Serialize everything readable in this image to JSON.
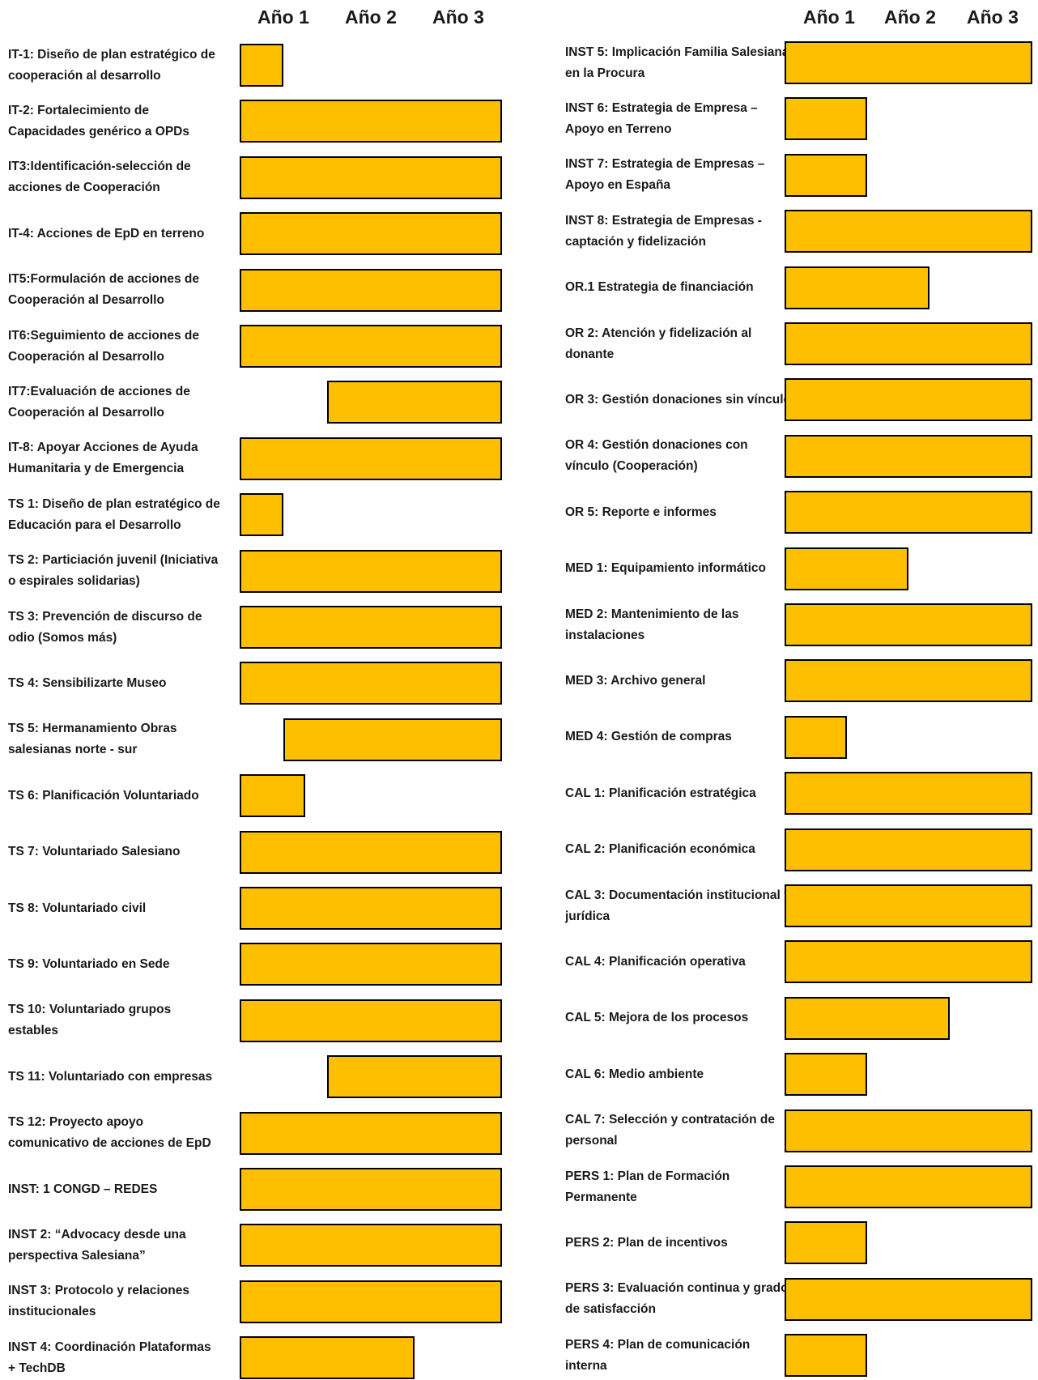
{
  "chart_data": {
    "type": "gantt",
    "year_headers": [
      "Año 1",
      "Año 2",
      "Año 3"
    ],
    "colors": {
      "bar": "#fdbf00",
      "border": "#000000",
      "text": "#1a1a1a"
    },
    "columns": [
      {
        "tasks": [
          {
            "label": "IT-1: Diseño de  plan estratégico de cooperación al desarrollo",
            "start": 0,
            "end": 0.5
          },
          {
            "label": "IT-2: Fortalecimiento de Capacidades genérico a OPDs",
            "start": 0,
            "end": 3
          },
          {
            "label": "IT3:Identificación-selección de acciones de Cooperación",
            "start": 0,
            "end": 3
          },
          {
            "label": "IT-4: Acciones de EpD en terreno",
            "start": 0,
            "end": 3
          },
          {
            "label": "IT5:Formulación de acciones de Cooperación al Desarrollo",
            "start": 0,
            "end": 3
          },
          {
            "label": "IT6:Seguimiento de acciones de Cooperación al Desarrollo",
            "start": 0,
            "end": 3
          },
          {
            "label": "IT7:Evaluación de acciones de Cooperación al Desarrollo",
            "start": 1,
            "end": 3
          },
          {
            "label": "IT-8: Apoyar Acciones de Ayuda Humanitaria y de Emergencia",
            "start": 0,
            "end": 3
          },
          {
            "label": "TS 1:  Diseño de  plan estratégico de Educación para el Desarrollo",
            "start": 0,
            "end": 0.5
          },
          {
            "label": "TS 2: Particiación juvenil (Iniciativa o espirales solidarias)",
            "start": 0,
            "end": 3
          },
          {
            "label": "TS 3: Prevención de discurso de odio (Somos más)",
            "start": 0,
            "end": 3
          },
          {
            "label": "TS 4: Sensibilizarte Museo",
            "start": 0,
            "end": 3
          },
          {
            "label": "TS 5: Hermanamiento Obras salesianas norte - sur",
            "start": 0.5,
            "end": 3
          },
          {
            "label": "TS 6: Planificación Voluntariado",
            "start": 0,
            "end": 0.75
          },
          {
            "label": "TS 7: Voluntariado Salesiano",
            "start": 0,
            "end": 3
          },
          {
            "label": "TS 8: Voluntariado civil",
            "start": 0,
            "end": 3
          },
          {
            "label": "TS 9: Voluntariado en Sede",
            "start": 0,
            "end": 3
          },
          {
            "label": "TS 10: Voluntariado grupos estables",
            "start": 0,
            "end": 3
          },
          {
            "label": "TS 11: Voluntariado con empresas",
            "start": 1,
            "end": 3
          },
          {
            "label": "TS 12: Proyecto apoyo comunicativo de acciones de EpD",
            "start": 0,
            "end": 3
          },
          {
            "label": "INST: 1 CONGD – REDES",
            "start": 0,
            "end": 3
          },
          {
            "label": "INST 2: “Advocacy desde una perspectiva Salesiana”",
            "start": 0,
            "end": 3
          },
          {
            "label": "INST 3: Protocolo y relaciones institucionales",
            "start": 0,
            "end": 3
          },
          {
            "label": "INST 4: Coordinación Plataformas + TechDB",
            "start": 0,
            "end": 2
          }
        ]
      },
      {
        "tasks": [
          {
            "label": "INST 5: Implicación Familia Salesiana en la Procura",
            "start": 0,
            "end": 3
          },
          {
            "label": "INST 6: Estrategia de Empresa – Apoyo en Terreno",
            "start": 0,
            "end": 1
          },
          {
            "label": "INST 7: Estrategia de Empresas – Apoyo en España",
            "start": 0,
            "end": 1
          },
          {
            "label": "INST 8: Estrategia de Empresas - captación y fidelización",
            "start": 0,
            "end": 3
          },
          {
            "label": "OR.1 Estrategia de financiación",
            "start": 0,
            "end": 1.75
          },
          {
            "label": "OR 2: Atención y fidelización  al donante",
            "start": 0,
            "end": 3
          },
          {
            "label": "OR 3: Gestión donaciones sin vínculo",
            "start": 0,
            "end": 3
          },
          {
            "label": "OR 4: Gestión donaciones con vínculo (Cooperación)",
            "start": 0,
            "end": 3
          },
          {
            "label": "OR 5: Reporte e informes",
            "start": 0,
            "end": 3
          },
          {
            "label": "MED 1: Equipamiento informático",
            "start": 0,
            "end": 1.5
          },
          {
            "label": "MED 2: Mantenimiento de las instalaciones",
            "start": 0,
            "end": 3
          },
          {
            "label": "MED 3: Archivo general",
            "start": 0,
            "end": 3
          },
          {
            "label": "MED 4: Gestión de compras",
            "start": 0,
            "end": 0.75
          },
          {
            "label": "CAL 1: Planificación estratégica",
            "start": 0,
            "end": 3
          },
          {
            "label": "CAL 2: Planificación económica",
            "start": 0,
            "end": 3
          },
          {
            "label": "CAL 3: Documentación institucional y jurídica",
            "start": 0,
            "end": 3
          },
          {
            "label": "CAL 4: Planificación operativa",
            "start": 0,
            "end": 3
          },
          {
            "label": "CAL 5: Mejora de los procesos",
            "start": 0,
            "end": 2
          },
          {
            "label": "CAL 6: Medio ambiente",
            "start": 0,
            "end": 1
          },
          {
            "label": "CAL 7: Selección y contratación de personal",
            "start": 0,
            "end": 3
          },
          {
            "label": "PERS 1: Plan de Formación Permanente",
            "start": 0,
            "end": 3
          },
          {
            "label": "PERS 2: Plan de incentivos",
            "start": 0,
            "end": 1
          },
          {
            "label": "PERS 3: Evaluación continua y grado de satisfacción",
            "start": 0,
            "end": 3
          },
          {
            "label": "PERS 4: Plan de comunicación interna",
            "start": 0,
            "end": 1
          }
        ]
      }
    ]
  }
}
